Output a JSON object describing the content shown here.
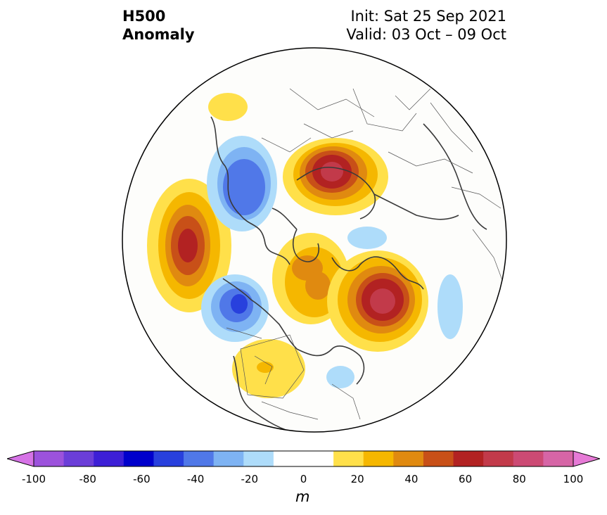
{
  "header": {
    "title_line1": "H500",
    "title_line2": "Anomaly",
    "init": "Init: Sat 25 Sep 2021",
    "valid": "Valid: 03 Oct – 09 Oct"
  },
  "colorbar": {
    "unit": "m",
    "ticks": [
      "-100",
      "-80",
      "-60",
      "-40",
      "-20",
      "0",
      "20",
      "40",
      "60",
      "80",
      "100"
    ],
    "colors": [
      "#d673e6",
      "#9c52dc",
      "#6b3ed8",
      "#3d1fd6",
      "#0000cc",
      "#2840dd",
      "#5078e8",
      "#7eb3f3",
      "#aedcfa",
      "#ffffff",
      "#ffffff",
      "#ffe04a",
      "#f5b700",
      "#e08a10",
      "#c85018",
      "#b22222",
      "#c23a4a",
      "#cc4a74",
      "#d665a6",
      "#e67ad6"
    ]
  }
}
